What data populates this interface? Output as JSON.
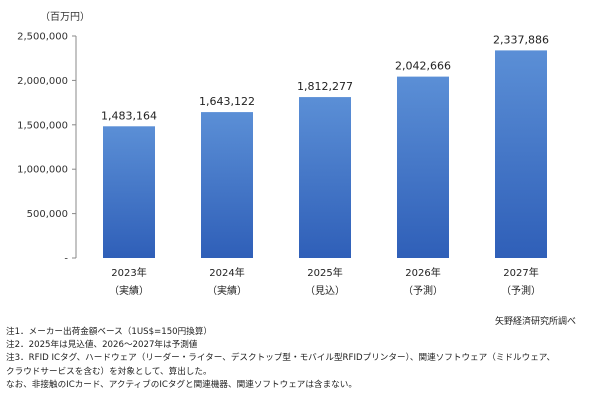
{
  "chart_data": {
    "type": "bar",
    "unit": "（百万円）",
    "categories": [
      {
        "year": "2023年",
        "status": "（実績）"
      },
      {
        "year": "2024年",
        "status": "（実績）"
      },
      {
        "year": "2025年",
        "status": "（見込）"
      },
      {
        "year": "2026年",
        "status": "（予測）"
      },
      {
        "year": "2027年",
        "status": "（予測）"
      }
    ],
    "values": [
      1483164,
      1643122,
      1812277,
      2042666,
      2337886
    ],
    "value_labels": [
      "1,483,164",
      "1,643,122",
      "1,812,277",
      "2,042,666",
      "2,337,886"
    ],
    "ylim": [
      0,
      2500000
    ],
    "yticks": [
      {
        "value": 2500000,
        "label": "2,500,000"
      },
      {
        "value": 2000000,
        "label": "2,000,000"
      },
      {
        "value": 1500000,
        "label": "1,500,000"
      },
      {
        "value": 1000000,
        "label": "1,000,000"
      },
      {
        "value": 500000,
        "label": "500,000"
      },
      {
        "value": 0,
        "label": "-"
      }
    ],
    "grid": false,
    "bar_color_top": "#5b8fd6",
    "bar_color_bottom": "#2f5fb8"
  },
  "source": "矢野経済研究所調べ",
  "notes": [
    "注1．メーカー出荷金額ベース（1US$=150円換算）",
    "注2．2025年は見込値、2026～2027年は予測値",
    "注3．RFID ICタグ、ハードウェア（リーダー・ライター、デスクトップ型・モバイル型RFIDプリンター）、関連ソフトウェア（ミドルウェア、",
    "クラウドサービスを含む）を対象として、算出した。",
    "なお、非接触のICカード、アクティブのICタグと関連機器、関連ソフトウェアは含まない。"
  ]
}
